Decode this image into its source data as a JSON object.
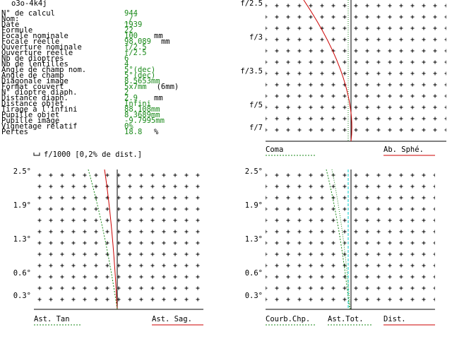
{
  "title": "o3o-4k4j",
  "parameters": [
    {
      "label": "N° de calcul",
      "value": "944"
    },
    {
      "label": "Nom:",
      "value": "_/¯"
    },
    {
      "label": "Date",
      "value": "1939"
    },
    {
      "label": "Formule",
      "value": "22"
    },
    {
      "label": "Focale nominale",
      "value": "100",
      "unit": "mm"
    },
    {
      "label": "Focale réelle",
      "value": "98.089",
      "unit": "mm"
    },
    {
      "label": "Ouverture nominale",
      "value": "f/2.5"
    },
    {
      "label": "Ouverture réelle",
      "value": "f/2.5"
    },
    {
      "label": "Nb de dioptres",
      "value": "6"
    },
    {
      "label": "Nb de lentilles",
      "value": "4"
    },
    {
      "label": "Angle de champ nom.",
      "value": "5°(dec)"
    },
    {
      "label": "Angle de champ",
      "value": "5°(dec)"
    },
    {
      "label": "Diagonale image",
      "value": "8.5653mm"
    },
    {
      "label": "Format couvert",
      "value": "5x7mm",
      "unit": "(6mm)"
    },
    {
      "label": "N° dioptre diaph.",
      "value": "2"
    },
    {
      "label": "Distance diaph.",
      "value": "2.9",
      "unit": "mm"
    },
    {
      "label": "Distance objet",
      "value": "Infini"
    },
    {
      "label": "Tirage à l'infini",
      "value": "88.108mm"
    },
    {
      "label": "Pupille objet",
      "value": "8.3689mm"
    },
    {
      "label": "Pupille image",
      "value": "-9.7995mm"
    },
    {
      "label": "Vignetage relatif",
      "value": "0%"
    },
    {
      "label": "Pertes",
      "value": "18.8",
      "unit": "%"
    }
  ],
  "scale_note": "f/1000 [0,2% de dist.]",
  "plots": [
    {
      "y_labels": [
        "f/2.5",
        "f/3",
        "f/3.5",
        "f/5",
        "f/7"
      ],
      "legend": [
        "Coma",
        "Ab. Sphé."
      ]
    },
    {
      "y_labels": [
        "2.5°",
        "1.9°",
        "1.3°",
        "0.6°",
        "0.3°"
      ],
      "legend": [
        "Ast. Tan",
        "Ast. Sag."
      ]
    },
    {
      "y_labels": [
        "2.5°",
        "1.9°",
        "1.3°",
        "0.6°",
        "0.3°"
      ],
      "legend": [
        "Courb.Chp.",
        "Ast.Tot.",
        "Dist."
      ]
    }
  ]
}
